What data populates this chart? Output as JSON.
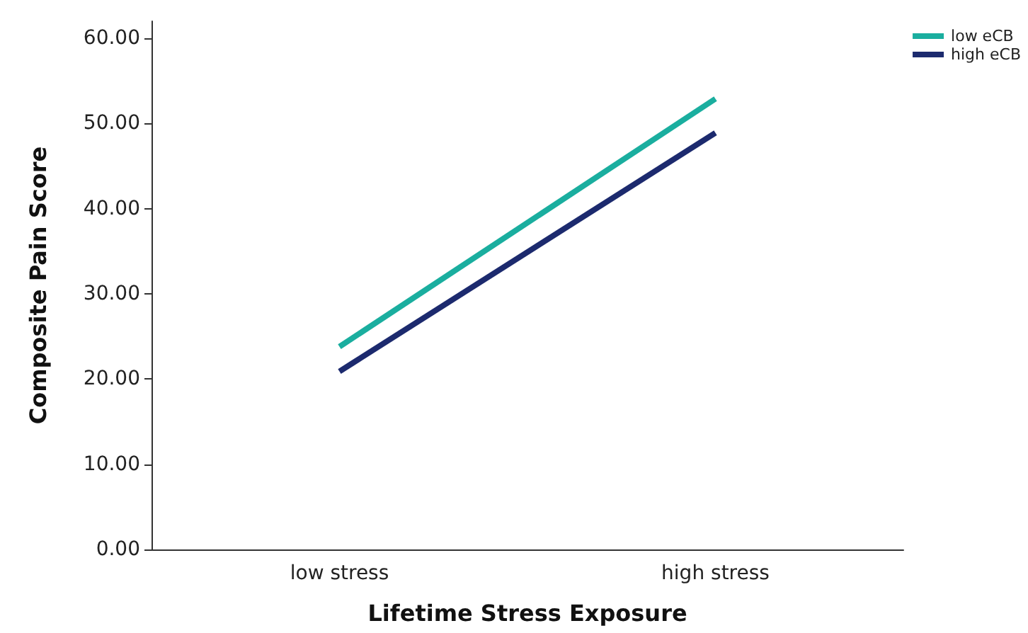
{
  "chart_data": {
    "type": "line",
    "xlabel": "Lifetime Stress Exposure",
    "ylabel": "Composite Pain Score",
    "categories": [
      "low stress",
      "high stress"
    ],
    "series": [
      {
        "name": "low eCB",
        "color": "#1aae9f",
        "values": [
          23.8,
          52.9
        ]
      },
      {
        "name": "high eCB",
        "color": "#1c2a6e",
        "values": [
          20.9,
          48.9
        ]
      }
    ],
    "ylim": [
      0,
      62
    ],
    "yticks": [
      {
        "value": 0,
        "label": "0.00"
      },
      {
        "value": 10,
        "label": "10.00"
      },
      {
        "value": 20,
        "label": "20.00"
      },
      {
        "value": 30,
        "label": "30.00"
      },
      {
        "value": 40,
        "label": "40.00"
      },
      {
        "value": 50,
        "label": "50.00"
      },
      {
        "value": 60,
        "label": "60.00"
      }
    ],
    "grid": false,
    "legend": "top right",
    "marker": "none",
    "line_style": "solid"
  }
}
